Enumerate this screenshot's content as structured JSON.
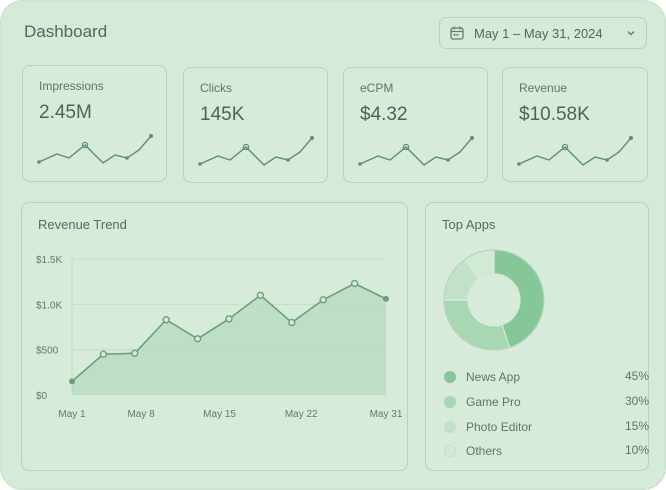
{
  "header": {
    "title": "Dashboard",
    "date_range": "May 1 – May 31, 2024"
  },
  "kpis": [
    {
      "label": "Impressions",
      "value": "2.45M"
    },
    {
      "label": "Clicks",
      "value": "145K"
    },
    {
      "label": "eCPM",
      "value": "$4.32"
    },
    {
      "label": "Revenue",
      "value": "$10.58K"
    }
  ],
  "revenue_trend": {
    "title": "Revenue Trend",
    "y_ticks": [
      "$1.5K",
      "$1.0K",
      "$500",
      "$0"
    ],
    "x_ticks": [
      "May 1",
      "May 8",
      "May 15",
      "May 22",
      "May 31"
    ]
  },
  "top_apps": {
    "title": "Top Apps",
    "items": [
      {
        "name": "News App",
        "pct": "45%",
        "color": "#86c79a"
      },
      {
        "name": "Game Pro",
        "pct": "30%",
        "color": "#a8d7b3"
      },
      {
        "name": "Photo Editor",
        "pct": "15%",
        "color": "#c2e2c8"
      },
      {
        "name": "Others",
        "pct": "10%",
        "color": "#d2e9d5"
      }
    ]
  },
  "chart_data": [
    {
      "type": "area",
      "title": "Revenue Trend",
      "xlabel": "",
      "ylabel": "",
      "x_ticks": [
        "May 1",
        "May 8",
        "May 15",
        "May 22",
        "May 31"
      ],
      "ylim": [
        0,
        1500
      ],
      "grid": true,
      "series": [
        {
          "values": [
            150,
            450,
            460,
            830,
            620,
            840,
            1100,
            800,
            1050,
            1230,
            1060
          ]
        }
      ]
    },
    {
      "type": "pie",
      "title": "Top Apps",
      "categories": [
        "News App",
        "Game Pro",
        "Photo Editor",
        "Others"
      ],
      "values": [
        45,
        30,
        15,
        10
      ]
    }
  ]
}
